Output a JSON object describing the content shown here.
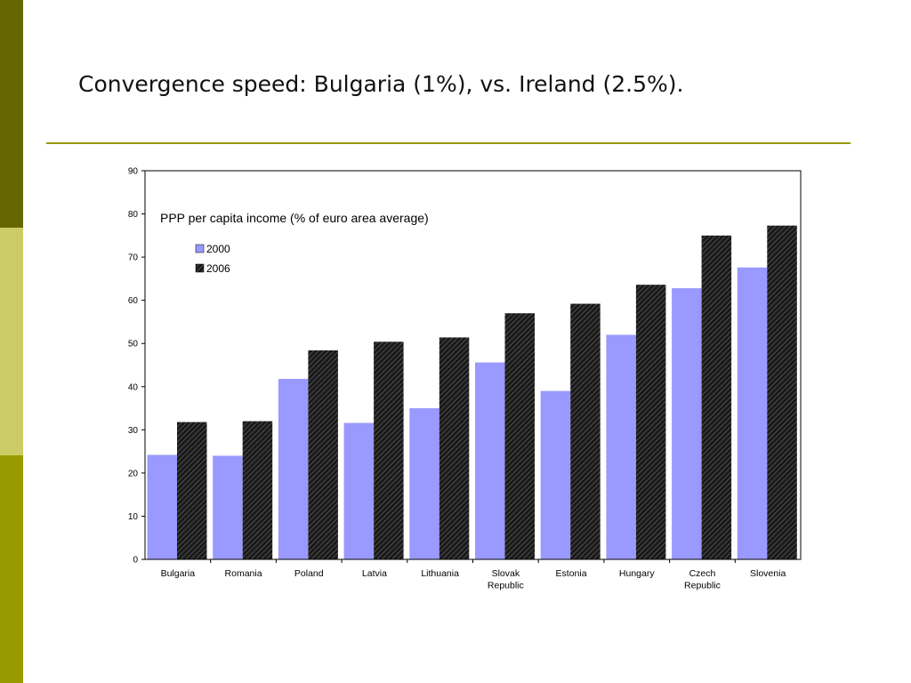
{
  "slide": {
    "title": "Convergence speed: Bulgaria (1%), vs. Ireland (2.5%).",
    "colors": {
      "side_top": "#666600",
      "side_mid": "#cccc66",
      "side_bot": "#999900",
      "rule": "#999900"
    }
  },
  "chart_data": {
    "type": "bar",
    "annotation": "PPP per capita income (% of euro area average)",
    "categories": [
      [
        "Bulgaria"
      ],
      [
        "Romania"
      ],
      [
        "Poland"
      ],
      [
        "Latvia"
      ],
      [
        "Lithuania"
      ],
      [
        "Slovak",
        "Republic"
      ],
      [
        "Estonia"
      ],
      [
        "Hungary"
      ],
      [
        "Czech",
        "Republic"
      ],
      [
        "Slovenia"
      ]
    ],
    "series": [
      {
        "name": "2000",
        "color": "#9999ff",
        "values": [
          24.2,
          24.0,
          41.8,
          31.6,
          35.0,
          45.6,
          39.0,
          52.0,
          62.8,
          67.6
        ]
      },
      {
        "name": "2006",
        "color": "#1a1a1a",
        "values": [
          31.8,
          32.0,
          48.4,
          50.4,
          51.4,
          57.0,
          59.2,
          63.6,
          75.0,
          77.3
        ]
      }
    ],
    "ylim": [
      0,
      90
    ],
    "yticks": [
      0,
      10,
      20,
      30,
      40,
      50,
      60,
      70,
      80,
      90
    ],
    "legend": "top-left",
    "grid": false
  }
}
